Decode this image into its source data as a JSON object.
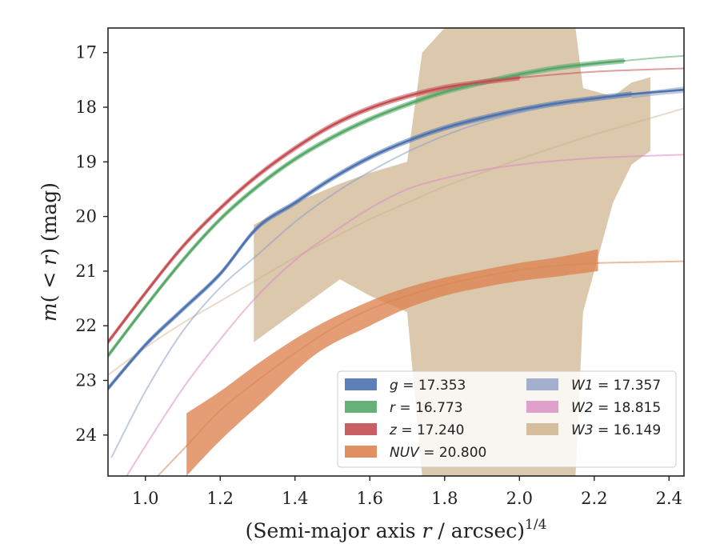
{
  "chart_data": {
    "type": "line",
    "xlabel": "(Semi-major axis r / arcsec)",
    "xlabel_var": "r",
    "xlabel_prefix": "(Semi-major axis ",
    "xlabel_suffix": " / arcsec)",
    "xlabel_exponent": "1/4",
    "ylabel": "m(< r) (mag)",
    "ylabel_m": "m",
    "ylabel_paren": "(",
    "ylabel_lt": " < ",
    "ylabel_r": "r",
    "ylabel_close": ")",
    "ylabel_unit": " (mag)",
    "xlim": [
      0.9,
      2.44
    ],
    "ylim": [
      24.75,
      16.55
    ],
    "y_inverted": true,
    "xticks": [
      1.0,
      1.2,
      1.4,
      1.6,
      1.8,
      2.0,
      2.2,
      2.4
    ],
    "xtick_labels": [
      "1.0",
      "1.2",
      "1.4",
      "1.6",
      "1.8",
      "2.0",
      "2.2",
      "2.4"
    ],
    "yticks": [
      17,
      18,
      19,
      20,
      21,
      22,
      23,
      24
    ],
    "ytick_labels": [
      "17",
      "18",
      "19",
      "20",
      "21",
      "22",
      "23",
      "24"
    ],
    "grid": false,
    "legend_position": "lower-right",
    "series": [
      {
        "name": "g",
        "value_label": "17.353",
        "color": "#4c72b0",
        "x": [
          0.9,
          1.0,
          1.1,
          1.2,
          1.3,
          1.4,
          1.5,
          1.6,
          1.7,
          1.8,
          1.9,
          2.0,
          2.1,
          2.2,
          2.3,
          2.44
        ],
        "y": [
          23.15,
          22.35,
          21.7,
          21.05,
          20.2,
          19.75,
          19.3,
          18.92,
          18.62,
          18.38,
          18.2,
          18.05,
          17.93,
          17.84,
          17.76,
          17.68
        ],
        "band_x": [
          0.9,
          1.0,
          1.1,
          1.2,
          1.3,
          1.4,
          1.5,
          1.6,
          1.7,
          1.8,
          1.9,
          2.0,
          2.1,
          2.2,
          2.3
        ],
        "band_upper": [
          23.1,
          22.3,
          21.65,
          21.0,
          20.15,
          19.7,
          19.25,
          18.87,
          18.57,
          18.33,
          18.15,
          18.0,
          17.88,
          17.79,
          17.71
        ],
        "band_lower": [
          23.2,
          22.4,
          21.75,
          21.1,
          20.25,
          19.8,
          19.35,
          18.97,
          18.67,
          18.43,
          18.25,
          18.1,
          17.98,
          17.89,
          17.81
        ],
        "extrap_x": [
          2.3,
          2.44
        ],
        "extrap_y": [
          17.76,
          17.68
        ]
      },
      {
        "name": "r",
        "value_label": "16.773",
        "color": "#55a868",
        "x": [
          0.9,
          1.0,
          1.1,
          1.2,
          1.3,
          1.4,
          1.5,
          1.6,
          1.7,
          1.8,
          1.9,
          2.0,
          2.1,
          2.2,
          2.28
        ],
        "y": [
          22.55,
          21.65,
          20.8,
          20.05,
          19.45,
          18.95,
          18.55,
          18.22,
          17.95,
          17.72,
          17.55,
          17.4,
          17.28,
          17.2,
          17.15
        ],
        "band_x": [
          0.9,
          1.0,
          1.1,
          1.2,
          1.3,
          1.4,
          1.5,
          1.6,
          1.7,
          1.8,
          1.9,
          2.0,
          2.1,
          2.2,
          2.28
        ],
        "band_upper": [
          22.5,
          21.6,
          20.75,
          20.0,
          19.4,
          18.9,
          18.5,
          18.17,
          17.9,
          17.67,
          17.5,
          17.35,
          17.23,
          17.15,
          17.1
        ],
        "band_lower": [
          22.6,
          21.7,
          20.85,
          20.1,
          19.5,
          19.0,
          18.6,
          18.27,
          18.0,
          17.77,
          17.6,
          17.45,
          17.33,
          17.25,
          17.2
        ],
        "extrap_x": [
          2.28,
          2.36,
          2.44
        ],
        "extrap_y": [
          17.15,
          17.1,
          17.06
        ]
      },
      {
        "name": "z",
        "value_label": "17.240",
        "color": "#c44e52",
        "x": [
          0.9,
          1.0,
          1.1,
          1.2,
          1.3,
          1.4,
          1.5,
          1.6,
          1.7,
          1.8,
          1.9,
          2.0
        ],
        "y": [
          22.3,
          21.4,
          20.55,
          19.85,
          19.25,
          18.75,
          18.33,
          18.02,
          17.8,
          17.64,
          17.54,
          17.46
        ],
        "band_x": [
          0.9,
          1.0,
          1.1,
          1.2,
          1.3,
          1.4,
          1.5,
          1.6,
          1.7,
          1.8,
          1.9,
          2.0
        ],
        "band_upper": [
          22.25,
          21.35,
          20.5,
          19.8,
          19.2,
          18.7,
          18.28,
          17.97,
          17.75,
          17.59,
          17.49,
          17.41
        ],
        "band_lower": [
          22.35,
          21.45,
          20.6,
          19.9,
          19.3,
          18.8,
          18.38,
          18.07,
          17.85,
          17.69,
          17.59,
          17.51
        ],
        "extrap_x": [
          2.0,
          2.1,
          2.2,
          2.3,
          2.44
        ],
        "extrap_y": [
          17.46,
          17.4,
          17.35,
          17.32,
          17.29
        ]
      },
      {
        "name": "NUV",
        "value_label": "20.800",
        "color": "#dd8452",
        "x": [
          1.11,
          1.2,
          1.3,
          1.4,
          1.5,
          1.6,
          1.7,
          1.8,
          1.9,
          2.0,
          2.1,
          2.21
        ],
        "y": [
          24.2,
          23.55,
          23.0,
          22.5,
          22.05,
          21.7,
          21.45,
          21.25,
          21.1,
          20.98,
          20.9,
          20.85
        ],
        "band_x": [
          1.11,
          1.2,
          1.32,
          1.46,
          1.6,
          1.7,
          1.8,
          1.9,
          2.0,
          2.1,
          2.21
        ],
        "band_upper": [
          23.6,
          23.2,
          22.6,
          22.0,
          21.55,
          21.3,
          21.12,
          20.98,
          20.85,
          20.75,
          20.6
        ],
        "band_lower": [
          24.75,
          24.1,
          23.35,
          22.5,
          22.0,
          21.68,
          21.45,
          21.3,
          21.18,
          21.1,
          21.0
        ],
        "extrap_x": [
          0.97,
          1.11
        ],
        "extrap_y": [
          25.2,
          24.2
        ],
        "extrap2_x": [
          2.21,
          2.44
        ],
        "extrap2_y": [
          20.85,
          20.82
        ]
      },
      {
        "name": "W1",
        "value_label": "17.357",
        "color": "#8c9ec4",
        "x": [
          0.91,
          1.0,
          1.1,
          1.2,
          1.3,
          1.4,
          1.5,
          1.6,
          1.7,
          1.8,
          1.9,
          2.0,
          2.1,
          2.2,
          2.3,
          2.44
        ],
        "y": [
          24.4,
          23.2,
          22.1,
          21.3,
          20.7,
          20.1,
          19.6,
          19.18,
          18.82,
          18.52,
          18.28,
          18.1,
          17.96,
          17.85,
          17.77,
          17.68
        ],
        "band_x": [
          2.3,
          2.37,
          2.44
        ],
        "band_upper": [
          17.74,
          17.68,
          17.62
        ],
        "band_lower": [
          17.84,
          17.78,
          17.74
        ],
        "extrap_x": [],
        "extrap_y": []
      },
      {
        "name": "W2",
        "value_label": "18.815",
        "color": "#da8bc3",
        "x": [
          0.95,
          1.0,
          1.1,
          1.2,
          1.3,
          1.4,
          1.5,
          1.6,
          1.7,
          1.8,
          1.9,
          2.0,
          2.1,
          2.2,
          2.3,
          2.44
        ],
        "y": [
          24.75,
          24.2,
          23.15,
          22.25,
          21.45,
          20.8,
          20.3,
          19.85,
          19.5,
          19.3,
          19.15,
          19.05,
          18.98,
          18.93,
          18.9,
          18.87
        ],
        "band_x": [],
        "band_upper": [],
        "band_lower": [],
        "extrap_x": [],
        "extrap_y": []
      },
      {
        "name": "W3",
        "value_label": "16.149",
        "color": "#ccb08a",
        "x": [
          0.9,
          1.0,
          1.1,
          1.2,
          1.3,
          1.4,
          1.5,
          1.6,
          1.7,
          1.8,
          1.9,
          2.0,
          2.1,
          2.2,
          2.3,
          2.44
        ],
        "y": [
          22.9,
          22.4,
          21.95,
          21.55,
          21.15,
          20.75,
          20.4,
          20.05,
          19.75,
          19.45,
          19.2,
          18.95,
          18.72,
          18.5,
          18.3,
          18.02
        ],
        "band_x": [
          1.29,
          1.4,
          1.52,
          1.6,
          1.7,
          1.74,
          1.8,
          2.0,
          2.15,
          2.17,
          2.25,
          2.3,
          2.35
        ],
        "band_upper": [
          20.15,
          19.75,
          19.4,
          19.2,
          19.0,
          17.0,
          16.55,
          16.55,
          16.55,
          17.65,
          17.8,
          17.55,
          17.45
        ],
        "band_lower": [
          22.3,
          21.75,
          21.15,
          21.45,
          21.75,
          24.75,
          24.75,
          24.75,
          24.75,
          21.75,
          19.75,
          19.05,
          18.8
        ],
        "extrap_x": [],
        "extrap_y": []
      }
    ],
    "legend": [
      {
        "var": "g",
        "eq": " = 17.353",
        "color": "#4c72b0"
      },
      {
        "var": "r",
        "eq": " = 16.773",
        "color": "#55a868"
      },
      {
        "var": "z",
        "eq": " = 17.240",
        "color": "#c44e52"
      },
      {
        "var": "NUV",
        "eq": " = 20.800",
        "color": "#dd8452"
      },
      {
        "var": "W1",
        "eq": " = 17.357",
        "color": "#8c9ec4"
      },
      {
        "var": "W2",
        "eq": " = 18.815",
        "color": "#da8bc3"
      },
      {
        "var": "W3",
        "eq": " = 16.149",
        "color": "#ccb08a"
      }
    ]
  }
}
